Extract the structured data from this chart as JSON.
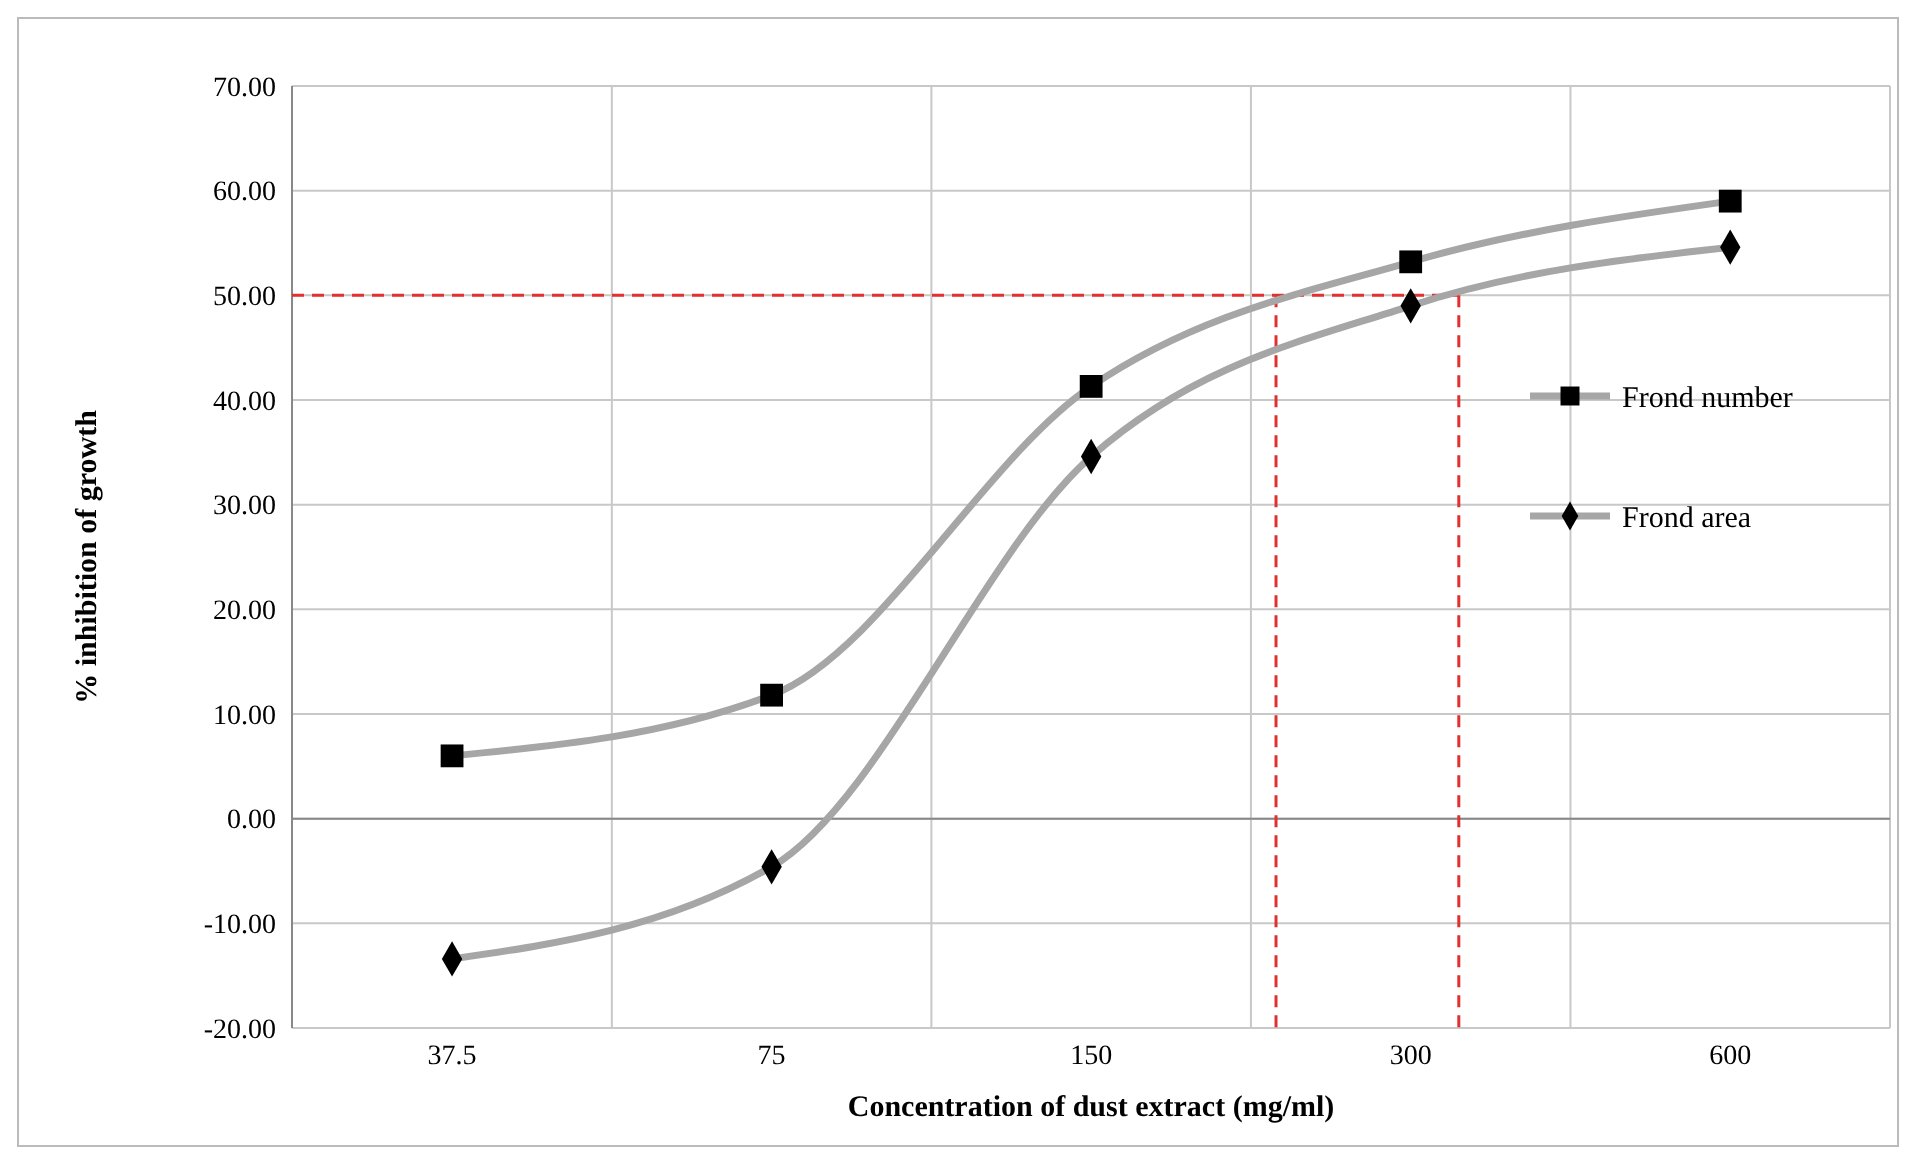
{
  "chart_data": {
    "type": "line",
    "xlabel": "Concentration of dust extract (mg/ml)",
    "ylabel": "% inhibition of growth",
    "x": [
      37.5,
      75,
      150,
      300,
      600
    ],
    "log": "x",
    "xlim": [
      26.5,
      848.5
    ],
    "xticks": [
      37.5,
      75,
      150,
      300,
      600
    ],
    "ylim": [
      -20,
      70
    ],
    "yticks": [
      {
        "value": -20,
        "label": "-20.00"
      },
      {
        "value": -10,
        "label": "-10.00"
      },
      {
        "value": 0,
        "label": "0.00"
      },
      {
        "value": 10,
        "label": "10.00"
      },
      {
        "value": 20,
        "label": "20.00"
      },
      {
        "value": 30,
        "label": "30.00"
      },
      {
        "value": 40,
        "label": "40.00"
      },
      {
        "value": 50,
        "label": "50.00"
      },
      {
        "value": 60,
        "label": "60.00"
      },
      {
        "value": 70,
        "label": "70.00"
      }
    ],
    "grid": true,
    "legend": "right",
    "series": [
      {
        "name": "Frond number",
        "color": "#a6a6a6",
        "marker": "square",
        "values": [
          6.0,
          11.8,
          41.3,
          53.2,
          59.0
        ]
      },
      {
        "name": "Frond area",
        "color": "#a6a6a6",
        "marker": "diamond",
        "values": [
          -13.4,
          -4.6,
          34.6,
          49.0,
          54.6
        ]
      }
    ],
    "ref_lines": [
      {
        "axis": "y",
        "value": 50,
        "color": "#e03030",
        "line_style": "dashed"
      },
      {
        "axis": "x",
        "value": 224,
        "color": "#e03030",
        "line_style": "dashed"
      },
      {
        "axis": "x",
        "value": 333,
        "color": "#e03030",
        "line_style": "dashed"
      }
    ]
  }
}
